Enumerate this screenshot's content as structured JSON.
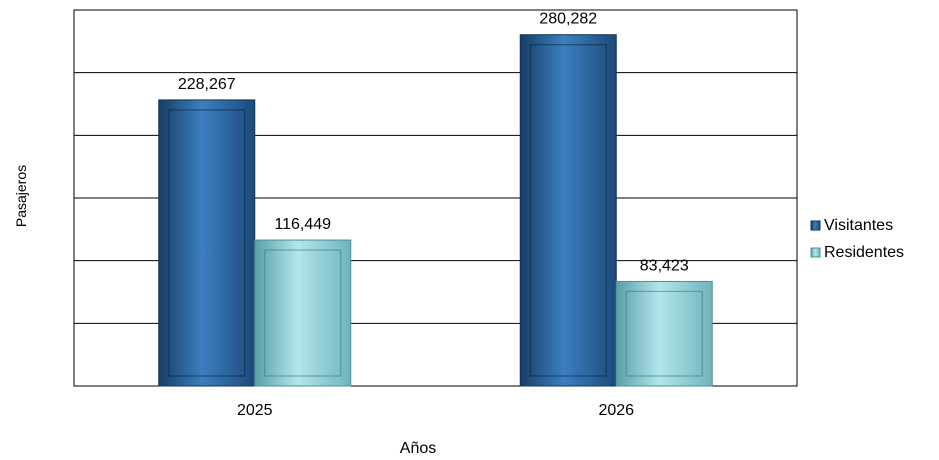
{
  "chart_data": {
    "type": "bar",
    "title": "",
    "xlabel": "Años",
    "ylabel": "Pasajeros",
    "categories": [
      "2025",
      "2026"
    ],
    "series": [
      {
        "name": "Visitantes",
        "values": [
          228267,
          280282
        ],
        "labels": [
          "228,267",
          "280,282"
        ],
        "color": "#2e6aa6"
      },
      {
        "name": "Residentes",
        "values": [
          116449,
          83423
        ],
        "labels": [
          "116,449",
          "83,423"
        ],
        "color": "#8fd0d8"
      }
    ],
    "ylim": [
      0,
      300000
    ],
    "gridlines": true,
    "legend_position": "right"
  }
}
